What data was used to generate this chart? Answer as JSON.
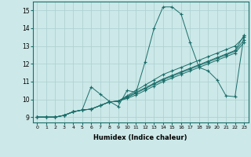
{
  "xlabel": "Humidex (Indice chaleur)",
  "xlim": [
    -0.5,
    23.5
  ],
  "ylim": [
    8.7,
    15.5
  ],
  "xticks": [
    0,
    1,
    2,
    3,
    4,
    5,
    6,
    7,
    8,
    9,
    10,
    11,
    12,
    13,
    14,
    15,
    16,
    17,
    18,
    19,
    20,
    21,
    22,
    23
  ],
  "yticks": [
    9,
    10,
    11,
    12,
    13,
    14,
    15
  ],
  "bg_color": "#cce8e8",
  "grid_color": "#aacfcf",
  "line_color": "#1a6e6a",
  "series": [
    [
      9.0,
      9.0,
      9.0,
      9.1,
      9.3,
      9.4,
      10.7,
      10.3,
      9.9,
      9.6,
      10.5,
      10.4,
      12.1,
      14.0,
      15.2,
      15.2,
      14.8,
      13.2,
      11.8,
      11.6,
      11.1,
      10.2,
      10.15,
      13.6
    ],
    [
      9.0,
      9.0,
      9.0,
      9.1,
      9.3,
      9.4,
      9.45,
      9.65,
      9.85,
      9.9,
      10.15,
      10.4,
      10.65,
      10.9,
      11.15,
      11.35,
      11.55,
      11.75,
      11.95,
      12.15,
      12.35,
      12.55,
      12.75,
      13.6
    ],
    [
      9.0,
      9.0,
      9.0,
      9.1,
      9.3,
      9.4,
      9.45,
      9.65,
      9.85,
      9.9,
      10.2,
      10.5,
      10.8,
      11.1,
      11.4,
      11.6,
      11.8,
      12.0,
      12.2,
      12.4,
      12.6,
      12.8,
      13.0,
      13.5
    ],
    [
      9.0,
      9.0,
      9.0,
      9.1,
      9.3,
      9.4,
      9.45,
      9.65,
      9.85,
      9.9,
      10.1,
      10.35,
      10.6,
      10.85,
      11.1,
      11.3,
      11.5,
      11.7,
      11.9,
      12.1,
      12.3,
      12.5,
      12.7,
      13.35
    ],
    [
      9.0,
      9.0,
      9.0,
      9.1,
      9.3,
      9.4,
      9.45,
      9.65,
      9.85,
      9.9,
      10.05,
      10.25,
      10.5,
      10.75,
      11.0,
      11.2,
      11.4,
      11.6,
      11.8,
      12.0,
      12.2,
      12.4,
      12.6,
      13.2
    ]
  ]
}
